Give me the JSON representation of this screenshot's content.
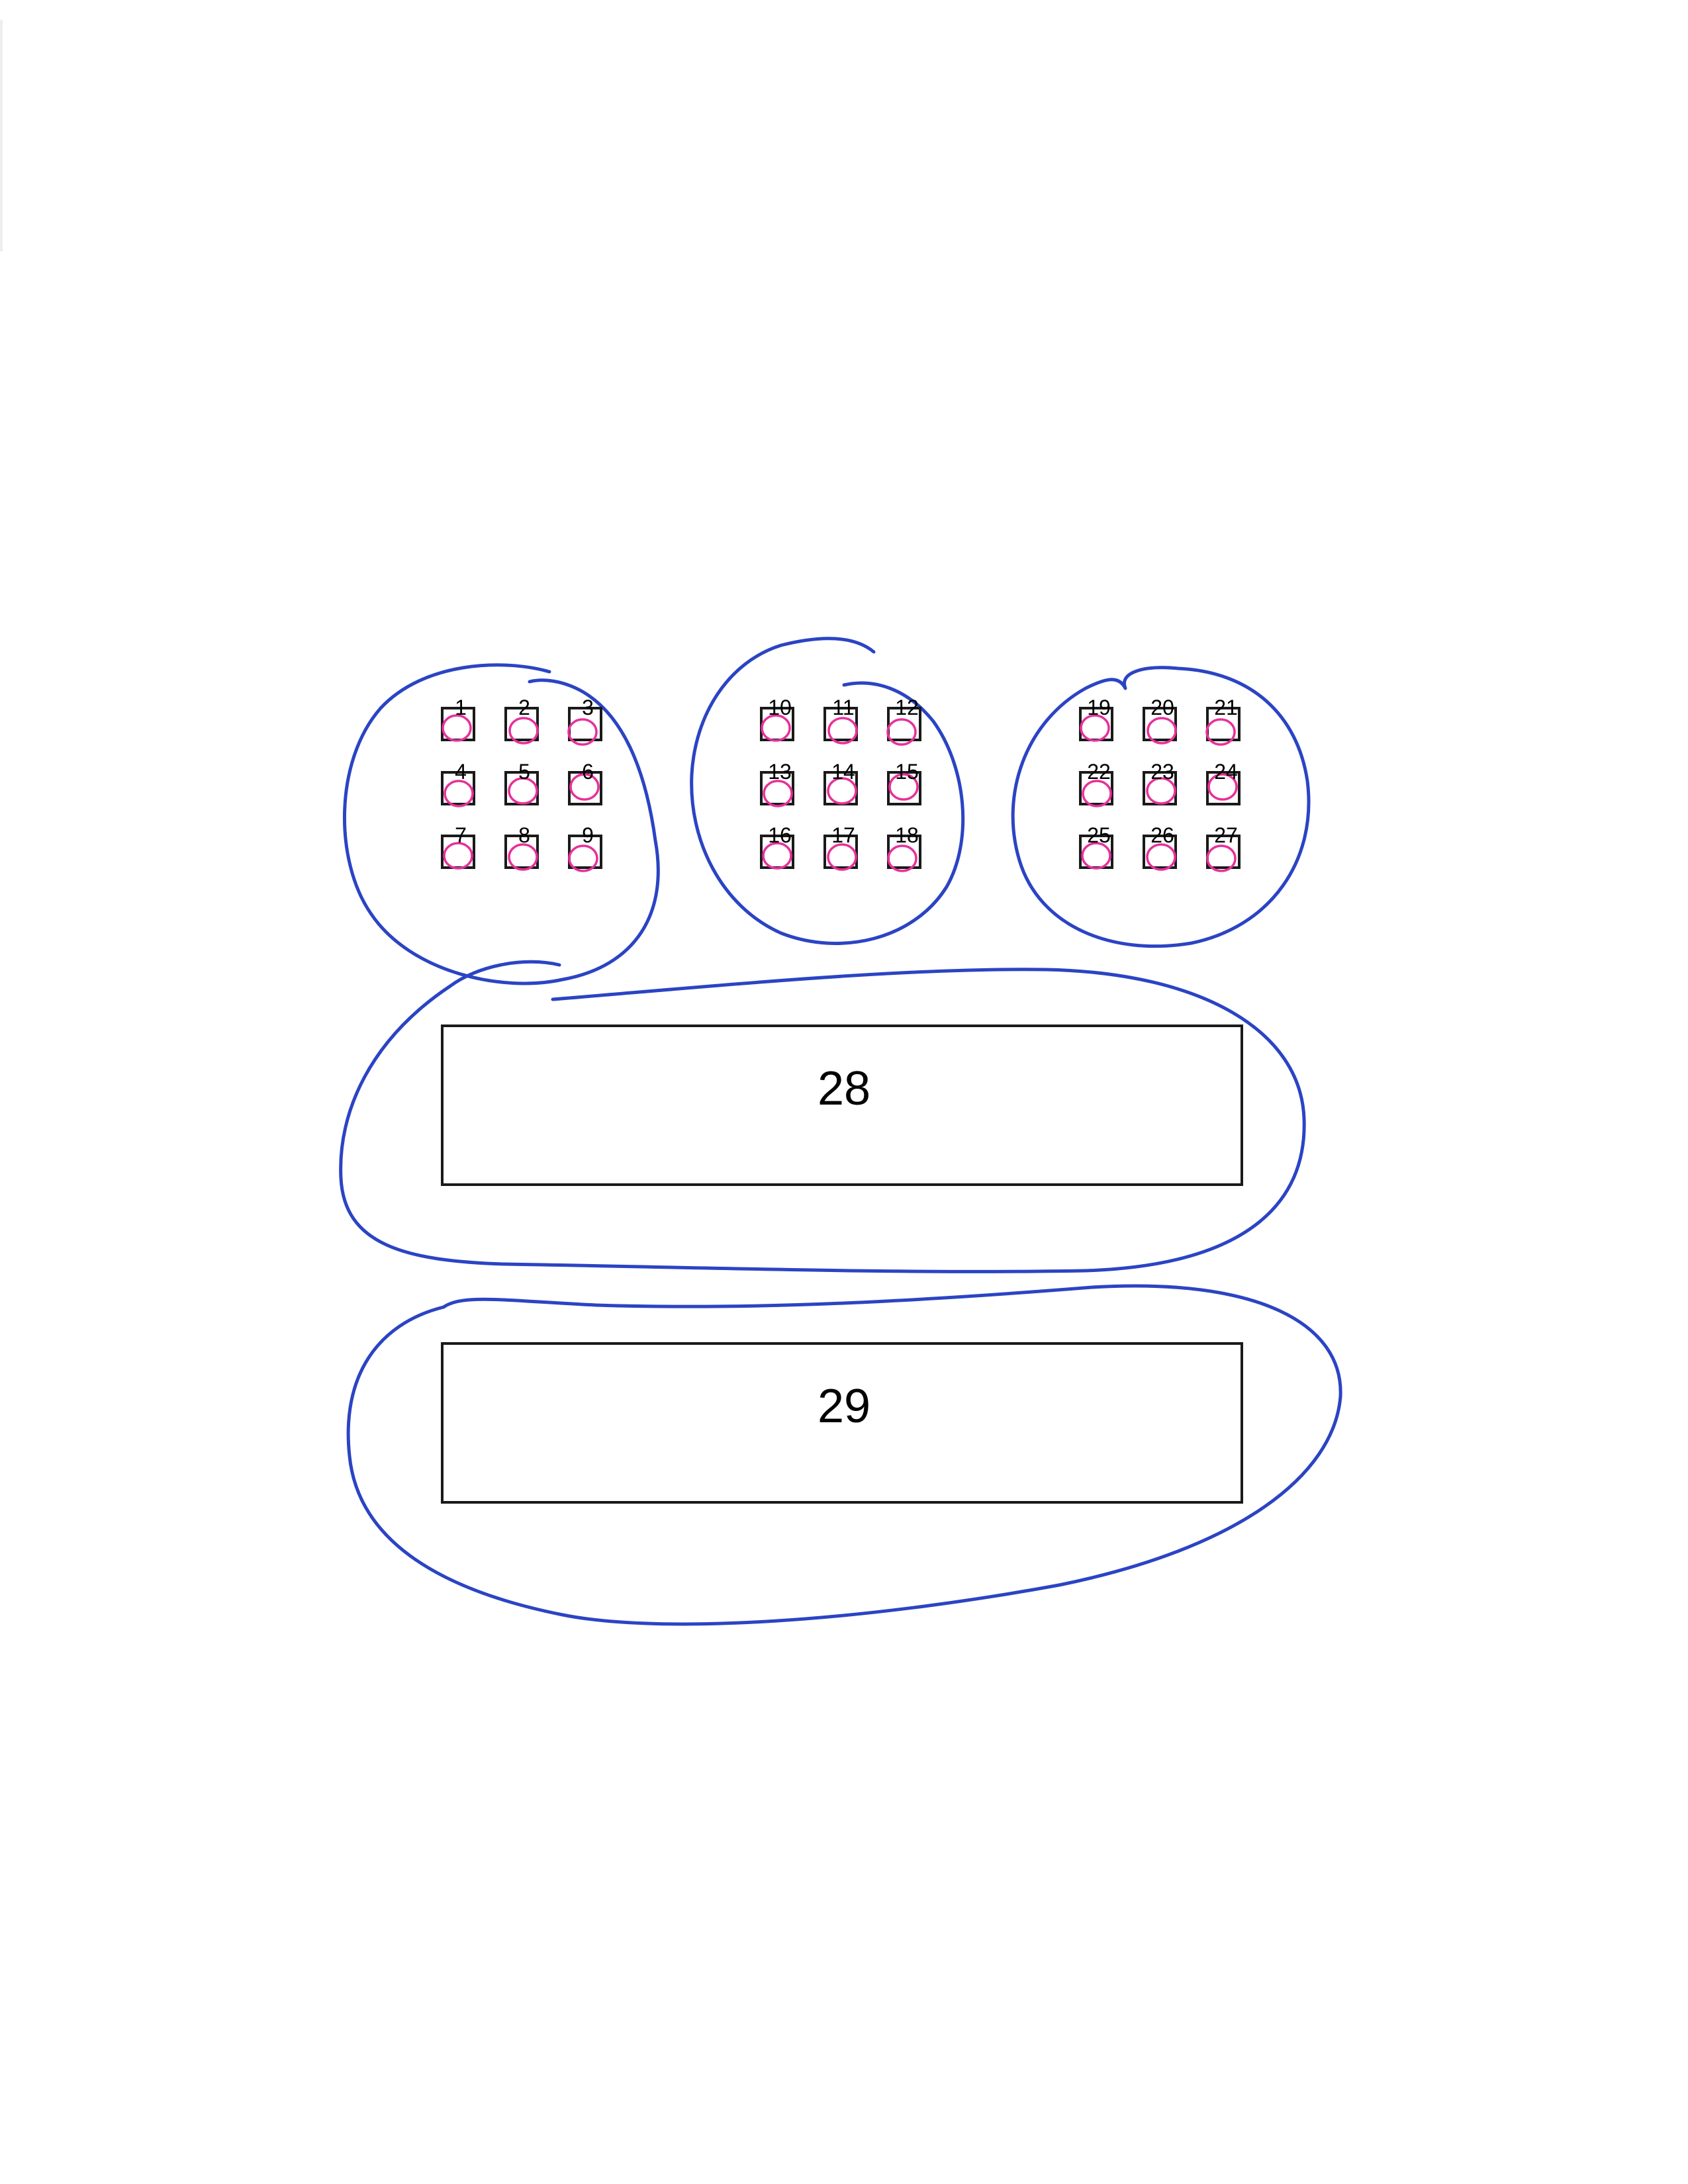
{
  "boxes": [
    {
      "label": "1",
      "group": 0,
      "row": 0,
      "col": 0
    },
    {
      "label": "2",
      "group": 0,
      "row": 0,
      "col": 1
    },
    {
      "label": "3",
      "group": 0,
      "row": 0,
      "col": 2
    },
    {
      "label": "4",
      "group": 0,
      "row": 1,
      "col": 0
    },
    {
      "label": "5",
      "group": 0,
      "row": 1,
      "col": 1
    },
    {
      "label": "6",
      "group": 0,
      "row": 1,
      "col": 2
    },
    {
      "label": "7",
      "group": 0,
      "row": 2,
      "col": 0
    },
    {
      "label": "8",
      "group": 0,
      "row": 2,
      "col": 1
    },
    {
      "label": "9",
      "group": 0,
      "row": 2,
      "col": 2
    },
    {
      "label": "10",
      "group": 1,
      "row": 0,
      "col": 0
    },
    {
      "label": "11",
      "group": 1,
      "row": 0,
      "col": 1
    },
    {
      "label": "12",
      "group": 1,
      "row": 0,
      "col": 2
    },
    {
      "label": "13",
      "group": 1,
      "row": 1,
      "col": 0
    },
    {
      "label": "14",
      "group": 1,
      "row": 1,
      "col": 1
    },
    {
      "label": "15",
      "group": 1,
      "row": 1,
      "col": 2
    },
    {
      "label": "16",
      "group": 1,
      "row": 2,
      "col": 0
    },
    {
      "label": "17",
      "group": 1,
      "row": 2,
      "col": 1
    },
    {
      "label": "18",
      "group": 1,
      "row": 2,
      "col": 2
    },
    {
      "label": "19",
      "group": 2,
      "row": 0,
      "col": 0
    },
    {
      "label": "20",
      "group": 2,
      "row": 0,
      "col": 1
    },
    {
      "label": "21",
      "group": 2,
      "row": 0,
      "col": 2
    },
    {
      "label": "22",
      "group": 2,
      "row": 1,
      "col": 0
    },
    {
      "label": "23",
      "group": 2,
      "row": 1,
      "col": 1
    },
    {
      "label": "24",
      "group": 2,
      "row": 1,
      "col": 2
    },
    {
      "label": "25",
      "group": 2,
      "row": 2,
      "col": 0
    },
    {
      "label": "26",
      "group": 2,
      "row": 2,
      "col": 1
    },
    {
      "label": "27",
      "group": 2,
      "row": 2,
      "col": 2
    }
  ],
  "wide_boxes": [
    {
      "label": "28"
    },
    {
      "label": "29"
    }
  ],
  "colors": {
    "outline": "#1a1a1a",
    "blue_ink": "#2b44c4",
    "pink_ink": "#e8309a",
    "paper": "#ffffff"
  }
}
